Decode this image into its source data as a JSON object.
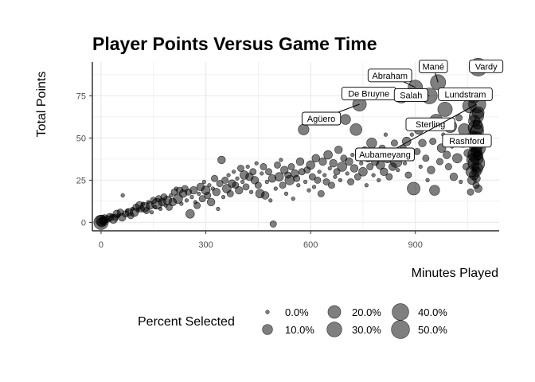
{
  "chart_data": {
    "type": "scatter",
    "title": "Player Points Versus Game Time",
    "xlabel": "Minutes Played",
    "ylabel": "Total Points",
    "xlim": [
      -25,
      1140
    ],
    "ylim": [
      -5,
      95
    ],
    "xticks": [
      0,
      300,
      600,
      900
    ],
    "yticks": [
      0,
      25,
      50,
      75
    ],
    "grid": true,
    "point_color": "#000000",
    "point_opacity": 0.5,
    "legend": {
      "title": "Percent Selected",
      "position": "bottom",
      "items": [
        {
          "label": "0.0%",
          "value": 0
        },
        {
          "label": "10.0%",
          "value": 10
        },
        {
          "label": "20.0%",
          "value": 20
        },
        {
          "label": "30.0%",
          "value": 30
        },
        {
          "label": "40.0%",
          "value": 40
        },
        {
          "label": "50.0%",
          "value": 50
        }
      ]
    },
    "annotations": [
      {
        "label": "Abraham",
        "x": 900,
        "y": 80
      },
      {
        "label": "Mané",
        "x": 965,
        "y": 83
      },
      {
        "label": "Vardy",
        "x": 1080,
        "y": 92
      },
      {
        "label": "De Bruyne",
        "x": 860,
        "y": 75
      },
      {
        "label": "Salah",
        "x": 940,
        "y": 75
      },
      {
        "label": "Lundstram",
        "x": 1075,
        "y": 75
      },
      {
        "label": "Agüero",
        "x": 740,
        "y": 70
      },
      {
        "label": "Sterling",
        "x": 1000,
        "y": 60
      },
      {
        "label": "Rashford",
        "x": 1075,
        "y": 63
      },
      {
        "label": "Aubameyang",
        "x": 1075,
        "y": 70
      }
    ],
    "points": [
      {
        "x": 0,
        "y": 0,
        "s": 14
      },
      {
        "x": 0,
        "y": 1,
        "s": 6
      },
      {
        "x": 2,
        "y": 0,
        "s": 4
      },
      {
        "x": 5,
        "y": 1,
        "s": 2
      },
      {
        "x": 8,
        "y": 0,
        "s": 1
      },
      {
        "x": 10,
        "y": 2,
        "s": 3
      },
      {
        "x": 15,
        "y": 1,
        "s": 0
      },
      {
        "x": 20,
        "y": 2,
        "s": 1
      },
      {
        "x": 25,
        "y": 3,
        "s": 2
      },
      {
        "x": 30,
        "y": 4,
        "s": 0
      },
      {
        "x": 35,
        "y": 2,
        "s": 3
      },
      {
        "x": 40,
        "y": 3,
        "s": 1
      },
      {
        "x": 45,
        "y": 5,
        "s": 2
      },
      {
        "x": 50,
        "y": 4,
        "s": 0
      },
      {
        "x": 55,
        "y": 6,
        "s": 1
      },
      {
        "x": 60,
        "y": 3,
        "s": 2
      },
      {
        "x": 62,
        "y": 16,
        "s": 0
      },
      {
        "x": 70,
        "y": 5,
        "s": 1
      },
      {
        "x": 75,
        "y": 7,
        "s": 0
      },
      {
        "x": 80,
        "y": 6,
        "s": 2
      },
      {
        "x": 85,
        "y": 4,
        "s": 1
      },
      {
        "x": 90,
        "y": 8,
        "s": 0
      },
      {
        "x": 95,
        "y": 6,
        "s": 3
      },
      {
        "x": 100,
        "y": 9,
        "s": 1
      },
      {
        "x": 105,
        "y": 7,
        "s": 0
      },
      {
        "x": 110,
        "y": 10,
        "s": 2
      },
      {
        "x": 115,
        "y": 8,
        "s": 1
      },
      {
        "x": 120,
        "y": 11,
        "s": 0
      },
      {
        "x": 125,
        "y": 9,
        "s": 4
      },
      {
        "x": 130,
        "y": 7,
        "s": 1
      },
      {
        "x": 135,
        "y": 12,
        "s": 0
      },
      {
        "x": 140,
        "y": 10,
        "s": 2
      },
      {
        "x": 145,
        "y": 6,
        "s": 0
      },
      {
        "x": 150,
        "y": 13,
        "s": 1
      },
      {
        "x": 155,
        "y": 9,
        "s": 0
      },
      {
        "x": 160,
        "y": 11,
        "s": 6
      },
      {
        "x": 165,
        "y": 14,
        "s": 1
      },
      {
        "x": 170,
        "y": 8,
        "s": 0
      },
      {
        "x": 175,
        "y": 12,
        "s": 2
      },
      {
        "x": 180,
        "y": 15,
        "s": 1
      },
      {
        "x": 185,
        "y": 10,
        "s": 0
      },
      {
        "x": 190,
        "y": 13,
        "s": 3
      },
      {
        "x": 195,
        "y": 9,
        "s": 1
      },
      {
        "x": 200,
        "y": 16,
        "s": 0
      },
      {
        "x": 205,
        "y": 12,
        "s": 2
      },
      {
        "x": 210,
        "y": 18,
        "s": 1
      },
      {
        "x": 215,
        "y": 20,
        "s": 0
      },
      {
        "x": 220,
        "y": 14,
        "s": 4
      },
      {
        "x": 225,
        "y": 19,
        "s": 1
      },
      {
        "x": 230,
        "y": 11,
        "s": 0
      },
      {
        "x": 235,
        "y": 17,
        "s": 2
      },
      {
        "x": 240,
        "y": 20,
        "s": 1
      },
      {
        "x": 245,
        "y": 13,
        "s": 0
      },
      {
        "x": 250,
        "y": 18,
        "s": 1
      },
      {
        "x": 255,
        "y": 5,
        "s": 3
      },
      {
        "x": 260,
        "y": 15,
        "s": 0
      },
      {
        "x": 265,
        "y": 19,
        "s": 2
      },
      {
        "x": 270,
        "y": 12,
        "s": 0
      },
      {
        "x": 275,
        "y": 10,
        "s": 1
      },
      {
        "x": 280,
        "y": 17,
        "s": 0
      },
      {
        "x": 285,
        "y": 21,
        "s": 2
      },
      {
        "x": 290,
        "y": 14,
        "s": 1
      },
      {
        "x": 295,
        "y": 24,
        "s": 0
      },
      {
        "x": 300,
        "y": 19,
        "s": 3
      },
      {
        "x": 305,
        "y": 16,
        "s": 1
      },
      {
        "x": 310,
        "y": 22,
        "s": 0
      },
      {
        "x": 315,
        "y": 12,
        "s": 2
      },
      {
        "x": 320,
        "y": 20,
        "s": 0
      },
      {
        "x": 325,
        "y": 26,
        "s": 1
      },
      {
        "x": 330,
        "y": 18,
        "s": 2
      },
      {
        "x": 335,
        "y": 8,
        "s": 0
      },
      {
        "x": 340,
        "y": 23,
        "s": 1
      },
      {
        "x": 345,
        "y": 37,
        "s": 2
      },
      {
        "x": 350,
        "y": 15,
        "s": 0
      },
      {
        "x": 355,
        "y": 25,
        "s": 1
      },
      {
        "x": 360,
        "y": 20,
        "s": 3
      },
      {
        "x": 365,
        "y": 28,
        "s": 0
      },
      {
        "x": 370,
        "y": 17,
        "s": 1
      },
      {
        "x": 375,
        "y": 23,
        "s": 2
      },
      {
        "x": 380,
        "y": 30,
        "s": 0
      },
      {
        "x": 385,
        "y": 22,
        "s": 1
      },
      {
        "x": 390,
        "y": 26,
        "s": 0
      },
      {
        "x": 395,
        "y": 19,
        "s": 2
      },
      {
        "x": 400,
        "y": 32,
        "s": 1
      },
      {
        "x": 405,
        "y": 24,
        "s": 0
      },
      {
        "x": 410,
        "y": 28,
        "s": 3
      },
      {
        "x": 415,
        "y": 21,
        "s": 1
      },
      {
        "x": 420,
        "y": 33,
        "s": 0
      },
      {
        "x": 425,
        "y": 27,
        "s": 2
      },
      {
        "x": 430,
        "y": 18,
        "s": 0
      },
      {
        "x": 435,
        "y": 30,
        "s": 1
      },
      {
        "x": 440,
        "y": 25,
        "s": 2
      },
      {
        "x": 445,
        "y": 35,
        "s": 0
      },
      {
        "x": 450,
        "y": 22,
        "s": 1
      },
      {
        "x": 455,
        "y": 17,
        "s": 3
      },
      {
        "x": 460,
        "y": 29,
        "s": 0
      },
      {
        "x": 465,
        "y": 33,
        "s": 1
      },
      {
        "x": 470,
        "y": 16,
        "s": 2
      },
      {
        "x": 475,
        "y": 24,
        "s": 0
      },
      {
        "x": 480,
        "y": 30,
        "s": 1
      },
      {
        "x": 485,
        "y": 13,
        "s": 0
      },
      {
        "x": 490,
        "y": 26,
        "s": 2
      },
      {
        "x": 493,
        "y": -1,
        "s": 1
      },
      {
        "x": 500,
        "y": 20,
        "s": 0
      },
      {
        "x": 505,
        "y": 34,
        "s": 1
      },
      {
        "x": 510,
        "y": 27,
        "s": 3
      },
      {
        "x": 515,
        "y": 37,
        "s": 0
      },
      {
        "x": 520,
        "y": 22,
        "s": 1
      },
      {
        "x": 525,
        "y": 31,
        "s": 2
      },
      {
        "x": 530,
        "y": 17,
        "s": 0
      },
      {
        "x": 535,
        "y": 28,
        "s": 1
      },
      {
        "x": 540,
        "y": 25,
        "s": 4
      },
      {
        "x": 545,
        "y": 33,
        "s": 1
      },
      {
        "x": 550,
        "y": 14,
        "s": 0
      },
      {
        "x": 555,
        "y": 29,
        "s": 2
      },
      {
        "x": 560,
        "y": 26,
        "s": 1
      },
      {
        "x": 565,
        "y": 22,
        "s": 0
      },
      {
        "x": 570,
        "y": 36,
        "s": 2
      },
      {
        "x": 575,
        "y": 30,
        "s": 1
      },
      {
        "x": 580,
        "y": 55,
        "s": 6
      },
      {
        "x": 585,
        "y": 24,
        "s": 0
      },
      {
        "x": 590,
        "y": 31,
        "s": 1
      },
      {
        "x": 595,
        "y": 19,
        "s": 0
      },
      {
        "x": 600,
        "y": 34,
        "s": 3
      },
      {
        "x": 605,
        "y": 27,
        "s": 1
      },
      {
        "x": 610,
        "y": 21,
        "s": 0
      },
      {
        "x": 615,
        "y": 38,
        "s": 2
      },
      {
        "x": 620,
        "y": 25,
        "s": 1
      },
      {
        "x": 625,
        "y": 30,
        "s": 0
      },
      {
        "x": 630,
        "y": 17,
        "s": 1
      },
      {
        "x": 635,
        "y": 36,
        "s": 2
      },
      {
        "x": 640,
        "y": 28,
        "s": 0
      },
      {
        "x": 645,
        "y": 24,
        "s": 1
      },
      {
        "x": 650,
        "y": 40,
        "s": 3
      },
      {
        "x": 655,
        "y": 32,
        "s": 0
      },
      {
        "x": 660,
        "y": 22,
        "s": 1
      },
      {
        "x": 665,
        "y": 35,
        "s": 2
      },
      {
        "x": 670,
        "y": 27,
        "s": 0
      },
      {
        "x": 675,
        "y": 30,
        "s": 1
      },
      {
        "x": 680,
        "y": 43,
        "s": 2
      },
      {
        "x": 685,
        "y": 25,
        "s": 0
      },
      {
        "x": 690,
        "y": 33,
        "s": 4
      },
      {
        "x": 695,
        "y": 38,
        "s": 1
      },
      {
        "x": 700,
        "y": 61,
        "s": 5
      },
      {
        "x": 705,
        "y": 29,
        "s": 0
      },
      {
        "x": 710,
        "y": 36,
        "s": 2
      },
      {
        "x": 715,
        "y": 24,
        "s": 1
      },
      {
        "x": 720,
        "y": 40,
        "s": 0
      },
      {
        "x": 725,
        "y": 32,
        "s": 2
      },
      {
        "x": 730,
        "y": 55,
        "s": 8
      },
      {
        "x": 735,
        "y": 27,
        "s": 1
      },
      {
        "x": 740,
        "y": 70,
        "s": 12
      },
      {
        "x": 745,
        "y": 35,
        "s": 0
      },
      {
        "x": 750,
        "y": 30,
        "s": 3
      },
      {
        "x": 755,
        "y": 43,
        "s": 1
      },
      {
        "x": 760,
        "y": 22,
        "s": 0
      },
      {
        "x": 765,
        "y": 38,
        "s": 2
      },
      {
        "x": 770,
        "y": 33,
        "s": 1
      },
      {
        "x": 775,
        "y": 47,
        "s": 5
      },
      {
        "x": 780,
        "y": 28,
        "s": 0
      },
      {
        "x": 785,
        "y": 36,
        "s": 2
      },
      {
        "x": 790,
        "y": 41,
        "s": 1
      },
      {
        "x": 795,
        "y": 25,
        "s": 0
      },
      {
        "x": 800,
        "y": 34,
        "s": 3
      },
      {
        "x": 805,
        "y": 44,
        "s": 1
      },
      {
        "x": 810,
        "y": 30,
        "s": 2
      },
      {
        "x": 815,
        "y": 52,
        "s": 0
      },
      {
        "x": 820,
        "y": 38,
        "s": 4
      },
      {
        "x": 825,
        "y": 27,
        "s": 1
      },
      {
        "x": 830,
        "y": 42,
        "s": 0
      },
      {
        "x": 835,
        "y": 33,
        "s": 2
      },
      {
        "x": 840,
        "y": 47,
        "s": 1
      },
      {
        "x": 845,
        "y": 36,
        "s": 8
      },
      {
        "x": 850,
        "y": 31,
        "s": 0
      },
      {
        "x": 855,
        "y": 40,
        "s": 2
      },
      {
        "x": 860,
        "y": 75,
        "s": 14
      },
      {
        "x": 865,
        "y": 44,
        "s": 1
      },
      {
        "x": 870,
        "y": 35,
        "s": 0
      },
      {
        "x": 875,
        "y": 48,
        "s": 3
      },
      {
        "x": 880,
        "y": 28,
        "s": 1
      },
      {
        "x": 885,
        "y": 39,
        "s": 2
      },
      {
        "x": 890,
        "y": 52,
        "s": 0
      },
      {
        "x": 895,
        "y": 20,
        "s": 10
      },
      {
        "x": 900,
        "y": 80,
        "s": 14
      },
      {
        "x": 905,
        "y": 42,
        "s": 1
      },
      {
        "x": 910,
        "y": 55,
        "s": 4
      },
      {
        "x": 915,
        "y": 33,
        "s": 0
      },
      {
        "x": 920,
        "y": 47,
        "s": 2
      },
      {
        "x": 925,
        "y": 58,
        "s": 6
      },
      {
        "x": 930,
        "y": 38,
        "s": 1
      },
      {
        "x": 935,
        "y": 25,
        "s": 0
      },
      {
        "x": 940,
        "y": 75,
        "s": 18
      },
      {
        "x": 945,
        "y": 31,
        "s": 2
      },
      {
        "x": 950,
        "y": 48,
        "s": 1
      },
      {
        "x": 955,
        "y": 19,
        "s": 5
      },
      {
        "x": 960,
        "y": 60,
        "s": 12
      },
      {
        "x": 965,
        "y": 83,
        "s": 16
      },
      {
        "x": 970,
        "y": 36,
        "s": 1
      },
      {
        "x": 975,
        "y": 44,
        "s": 3
      },
      {
        "x": 980,
        "y": 52,
        "s": 0
      },
      {
        "x": 985,
        "y": 67,
        "s": 14
      },
      {
        "x": 990,
        "y": 40,
        "s": 2
      },
      {
        "x": 995,
        "y": 33,
        "s": 1
      },
      {
        "x": 1000,
        "y": 57,
        "s": 10
      },
      {
        "x": 1005,
        "y": 45,
        "s": 0
      },
      {
        "x": 1010,
        "y": 27,
        "s": 2
      },
      {
        "x": 1015,
        "y": 50,
        "s": 1
      },
      {
        "x": 1020,
        "y": 38,
        "s": 4
      },
      {
        "x": 1025,
        "y": 62,
        "s": 1
      },
      {
        "x": 1030,
        "y": 24,
        "s": 0
      },
      {
        "x": 1035,
        "y": 47,
        "s": 3
      },
      {
        "x": 1040,
        "y": 55,
        "s": 8
      },
      {
        "x": 1045,
        "y": 33,
        "s": 1
      },
      {
        "x": 1050,
        "y": 41,
        "s": 2
      },
      {
        "x": 1055,
        "y": 69,
        "s": 12
      },
      {
        "x": 1058,
        "y": 18,
        "s": 1
      },
      {
        "x": 1060,
        "y": 30,
        "s": 6
      },
      {
        "x": 1062,
        "y": 25,
        "s": 3
      },
      {
        "x": 1064,
        "y": 44,
        "s": 1
      },
      {
        "x": 1065,
        "y": 37,
        "s": 10
      },
      {
        "x": 1066,
        "y": 52,
        "s": 2
      },
      {
        "x": 1067,
        "y": 75,
        "s": 14
      },
      {
        "x": 1068,
        "y": 28,
        "s": 4
      },
      {
        "x": 1069,
        "y": 60,
        "s": 8
      },
      {
        "x": 1070,
        "y": 40,
        "s": 12
      },
      {
        "x": 1071,
        "y": 33,
        "s": 2
      },
      {
        "x": 1072,
        "y": 48,
        "s": 6
      },
      {
        "x": 1073,
        "y": 56,
        "s": 16
      },
      {
        "x": 1074,
        "y": 22,
        "s": 1
      },
      {
        "x": 1075,
        "y": 63,
        "s": 14
      },
      {
        "x": 1075,
        "y": 45,
        "s": 8
      },
      {
        "x": 1075,
        "y": 35,
        "s": 20
      },
      {
        "x": 1075,
        "y": 50,
        "s": 10
      },
      {
        "x": 1075,
        "y": 30,
        "s": 4
      },
      {
        "x": 1075,
        "y": 42,
        "s": 6
      },
      {
        "x": 1075,
        "y": 26,
        "s": 2
      },
      {
        "x": 1076,
        "y": 54,
        "s": 12
      },
      {
        "x": 1076,
        "y": 38,
        "s": 10
      },
      {
        "x": 1077,
        "y": 70,
        "s": 22
      },
      {
        "x": 1077,
        "y": 47,
        "s": 3
      },
      {
        "x": 1078,
        "y": 32,
        "s": 6
      },
      {
        "x": 1078,
        "y": 58,
        "s": 4
      },
      {
        "x": 1079,
        "y": 40,
        "s": 5
      },
      {
        "x": 1080,
        "y": 92,
        "s": 24
      },
      {
        "x": 1080,
        "y": 65,
        "s": 8
      },
      {
        "x": 1080,
        "y": 20,
        "s": 2
      },
      {
        "x": 1080,
        "y": 44,
        "s": 14
      }
    ]
  }
}
